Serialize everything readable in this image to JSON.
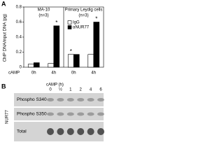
{
  "panel_a": {
    "label": "A",
    "chart_data": {
      "type": "bar",
      "y_label": "ChIP DNA/input DNA (pg)",
      "x_label": "cAMP",
      "groups": [
        {
          "name": "MA-10",
          "n": "(n=3)"
        },
        {
          "name": "Primary Leydig cells",
          "n": "(n=3)"
        }
      ],
      "categories": [
        "0h",
        "4h",
        "0h",
        "4h"
      ],
      "series": [
        {
          "name": "IgG",
          "color": "#ffffff",
          "values": [
            0.04,
            0.05,
            0.17,
            0.17
          ]
        },
        {
          "name": "αNUR77",
          "color": "#000000",
          "values": [
            0.06,
            0.55,
            0.17,
            0.6
          ]
        }
      ],
      "ylim": [
        0,
        0.8
      ],
      "yticks": [
        0,
        0.2,
        0.4,
        0.6,
        0.8
      ],
      "annotations": [
        {
          "text": "*",
          "series": 1,
          "category": 1
        },
        {
          "text": "*",
          "series": 0,
          "category": 2
        },
        {
          "text": "*",
          "series": 1,
          "category": 3
        }
      ]
    }
  },
  "panel_b": {
    "label": "B",
    "treatment": "cAMP (h)",
    "lanes": [
      "0",
      "½",
      "1",
      "2",
      "4",
      "6"
    ],
    "protein": "NUR77",
    "rows": [
      "Phospho S340",
      "Phospho S350",
      "Total"
    ]
  }
}
